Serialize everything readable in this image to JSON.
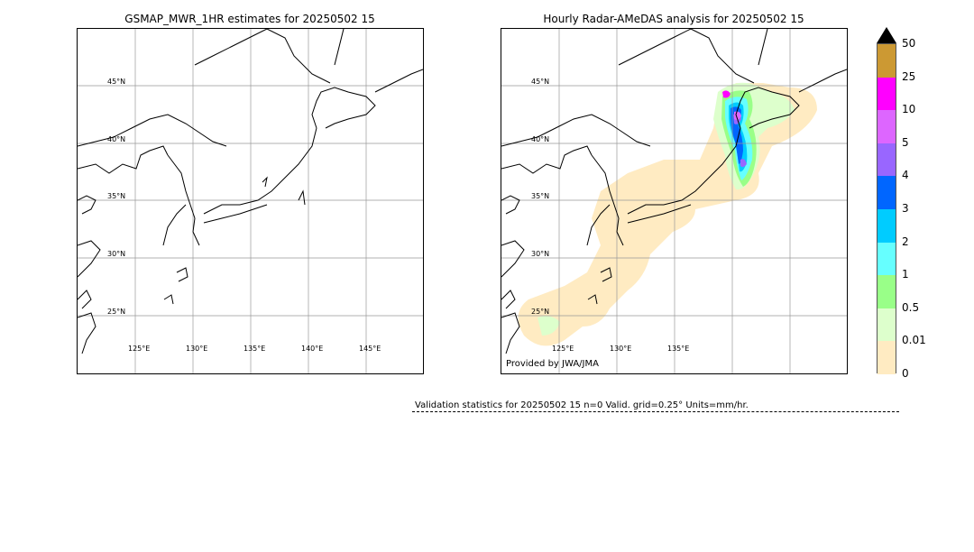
{
  "left_panel": {
    "title": "GSMAP_MWR_1HR estimates for 20250502 15",
    "lat_labels": [
      "45°N",
      "40°N",
      "35°N",
      "30°N",
      "25°N"
    ],
    "lon_labels": [
      "125°E",
      "130°E",
      "135°E",
      "140°E",
      "145°E"
    ]
  },
  "right_panel": {
    "title": "Hourly Radar-AMeDAS analysis for 20250502 15",
    "lat_labels": [
      "45°N",
      "40°N",
      "35°N",
      "30°N",
      "25°N"
    ],
    "lon_labels": [
      "125°E",
      "130°E",
      "135°E"
    ],
    "credit": "Provided by JWA/JMA"
  },
  "colorbar": {
    "ticks": [
      "50",
      "25",
      "10",
      "5",
      "4",
      "3",
      "2",
      "1",
      "0.5",
      "0.01",
      "0"
    ],
    "colors": [
      "#CC9933",
      "#FF00FF",
      "#DD66FF",
      "#9966FF",
      "#0066FF",
      "#00CCFF",
      "#66FFFF",
      "#99FF88",
      "#DDFFCC",
      "#FFEBC2"
    ]
  },
  "stats": {
    "text": "Validation statistics for 20250502 15  n=0 Valid. grid=0.25° Units=mm/hr."
  }
}
